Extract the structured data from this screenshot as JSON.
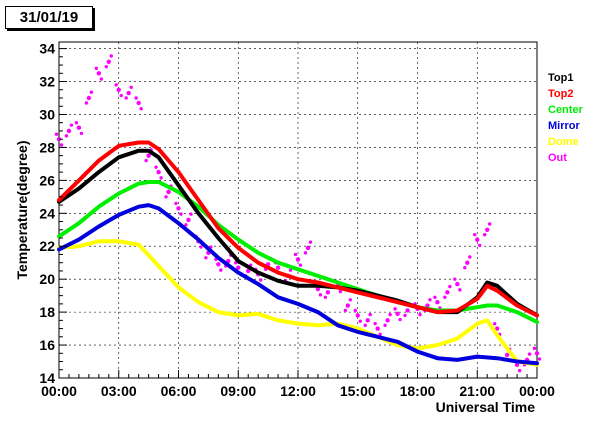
{
  "chart_data": {
    "type": "line",
    "title": "31/01/19",
    "xlabel": "Universal Time",
    "ylabel": "Temperature(degree)",
    "xlim": [
      0,
      24
    ],
    "ylim": [
      14,
      34.4
    ],
    "grid": true,
    "legend_position": "right",
    "x_ticks": [
      {
        "value": 0,
        "label": "00:00"
      },
      {
        "value": 3,
        "label": "03:00"
      },
      {
        "value": 6,
        "label": "06:00"
      },
      {
        "value": 9,
        "label": "09:00"
      },
      {
        "value": 12,
        "label": "12:00"
      },
      {
        "value": 15,
        "label": "15:00"
      },
      {
        "value": 18,
        "label": "18:00"
      },
      {
        "value": 21,
        "label": "21:00"
      },
      {
        "value": 24,
        "label": "00:00"
      }
    ],
    "y_ticks": [
      14,
      16,
      18,
      20,
      22,
      24,
      26,
      28,
      30,
      32,
      34
    ],
    "series": [
      {
        "name": "Top1",
        "color": "#000000",
        "style": "line",
        "x": [
          0,
          1,
          2,
          3,
          4,
          4.5,
          5,
          6,
          7,
          8,
          9,
          10,
          11,
          12,
          13,
          14,
          15,
          16,
          17,
          18,
          19,
          20,
          21,
          21.5,
          22,
          23,
          24
        ],
        "y": [
          24.7,
          25.5,
          26.5,
          27.4,
          27.8,
          27.8,
          27.4,
          25.7,
          24,
          22.5,
          21.1,
          20.4,
          19.9,
          19.6,
          19.6,
          19.5,
          19.3,
          19.0,
          18.7,
          18.3,
          18.0,
          18.0,
          18.9,
          19.8,
          19.6,
          18.5,
          17.8
        ]
      },
      {
        "name": "Top2",
        "color": "#ff0000",
        "style": "line",
        "x": [
          0,
          1,
          2,
          3,
          4,
          4.5,
          5,
          6,
          7,
          8,
          9,
          10,
          11,
          12,
          13,
          14,
          15,
          16,
          17,
          18,
          19,
          20,
          21,
          21.5,
          22,
          23,
          24
        ],
        "y": [
          24.8,
          26,
          27.2,
          28.1,
          28.3,
          28.3,
          27.9,
          26.5,
          24.8,
          23.1,
          21.9,
          21,
          20.4,
          20,
          19.8,
          19.5,
          19.2,
          18.9,
          18.6,
          18.3,
          18.0,
          18.1,
          18.8,
          19.6,
          19.3,
          18.4,
          17.8
        ]
      },
      {
        "name": "Center",
        "color": "#00ee00",
        "style": "line",
        "x": [
          0,
          1,
          2,
          3,
          4,
          4.5,
          5,
          6,
          7,
          8,
          9,
          10,
          11,
          12,
          13,
          14,
          15,
          16,
          17,
          18,
          19,
          20,
          21,
          21.5,
          22,
          23,
          24
        ],
        "y": [
          22.6,
          23.4,
          24.4,
          25.2,
          25.8,
          25.9,
          25.9,
          25.3,
          24.4,
          23.3,
          22.4,
          21.6,
          21,
          20.6,
          20.2,
          19.8,
          19.4,
          19.0,
          18.6,
          18.3,
          18.1,
          18.1,
          18.3,
          18.4,
          18.4,
          18.0,
          17.4
        ]
      },
      {
        "name": "Mirror",
        "color": "#0000dd",
        "style": "line",
        "x": [
          0,
          1,
          2,
          3,
          4,
          4.5,
          5,
          6,
          7,
          8,
          9,
          10,
          11,
          12,
          13,
          14,
          15,
          16,
          17,
          18,
          19,
          20,
          21,
          22,
          23,
          24
        ],
        "y": [
          21.8,
          22.4,
          23.2,
          23.9,
          24.4,
          24.5,
          24.3,
          23.4,
          22.4,
          21.3,
          20.4,
          19.7,
          18.9,
          18.5,
          18.0,
          17.2,
          16.8,
          16.5,
          16.2,
          15.6,
          15.2,
          15.1,
          15.3,
          15.2,
          15.0,
          14.9
        ]
      },
      {
        "name": "Dome",
        "color": "#ffff00",
        "style": "line",
        "x": [
          0,
          1,
          2,
          3,
          4,
          5,
          6,
          7,
          8,
          9,
          10,
          11,
          12,
          13,
          14,
          15,
          16,
          17,
          18,
          19,
          20,
          21,
          21.5,
          22,
          23,
          24
        ],
        "y": [
          21.9,
          22.0,
          22.3,
          22.3,
          22.1,
          20.8,
          19.5,
          18.6,
          18.0,
          17.8,
          17.9,
          17.5,
          17.3,
          17.2,
          17.3,
          17.0,
          16.5,
          16.0,
          15.8,
          16.0,
          16.4,
          17.3,
          17.5,
          16.6,
          15.0,
          14.8
        ]
      },
      {
        "name": "Out",
        "color": "#ff00ff",
        "style": "scatter",
        "x": [
          0,
          0.5,
          1,
          1.5,
          2,
          2.5,
          3,
          3.5,
          4,
          4.5,
          5,
          5.5,
          6,
          6.5,
          7,
          7.5,
          8,
          8.5,
          9,
          9.5,
          10,
          10.5,
          11,
          11.5,
          12,
          12.5,
          13,
          13.5,
          14,
          14.5,
          15,
          15.5,
          16,
          16.5,
          17,
          17.5,
          18,
          18.5,
          19,
          19.5,
          20,
          20.5,
          21,
          21.5,
          22,
          22.5,
          23,
          23.5,
          24
        ],
        "y": [
          28.5,
          29,
          29.2,
          31,
          32.5,
          33.2,
          31.5,
          31.3,
          30.7,
          27.5,
          26.5,
          25.3,
          24.3,
          23.6,
          22.3,
          21.6,
          20.9,
          21.1,
          20.7,
          20.5,
          20.3,
          20.9,
          20.7,
          20.2,
          21.2,
          21.9,
          19.4,
          19.2,
          19.6,
          18.4,
          17.8,
          17.5,
          17.0,
          17.5,
          17.9,
          18.1,
          18.2,
          18.4,
          18.6,
          19.2,
          19.7,
          21.0,
          22.4,
          23.0,
          17.0,
          15.4,
          14.8,
          15.1,
          15.5
        ]
      }
    ]
  }
}
